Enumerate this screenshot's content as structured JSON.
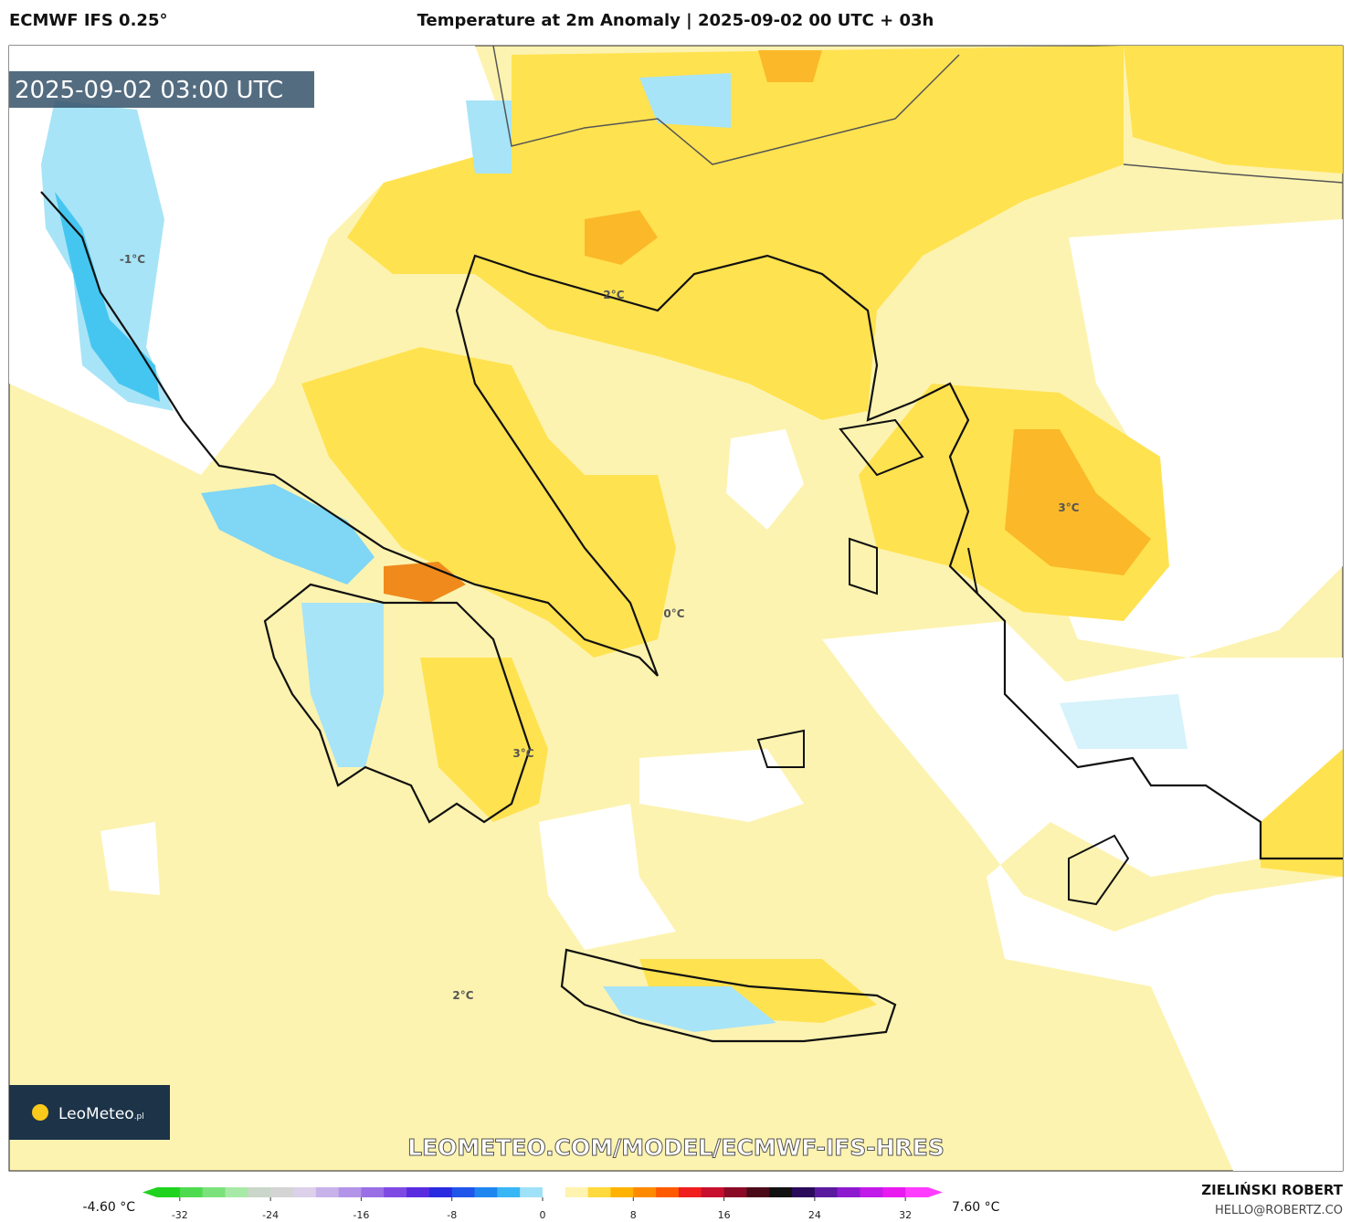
{
  "header": {
    "model": "ECMWF IFS 0.25°",
    "title": "Temperature at 2m Anomaly | 2025-09-02 00 UTC + 03h"
  },
  "map": {
    "timestamp": "2025-09-02 03:00 UTC",
    "logo": "LeoMeteo",
    "logo_suffix": ".pl",
    "url": "LEOMETEO.COM/MODEL/ECMWF-IFS-HRES",
    "contour_labels": [
      "-1°C",
      "2°C",
      "3°C",
      "0°C",
      "3°C",
      "2°C"
    ]
  },
  "colorbar": {
    "min_label": "-4.60 °C",
    "max_label": "7.60 °C",
    "lim": [
      -34,
      34
    ],
    "ticks": [
      -32,
      -24,
      -16,
      -8,
      0,
      8,
      16,
      24,
      32
    ],
    "colors": [
      "#1fd31f",
      "#4fdb4f",
      "#7be27b",
      "#a7e9a7",
      "#c9d6c9",
      "#d4d4d4",
      "#dcd0ea",
      "#c8b2ea",
      "#b394e8",
      "#9a6fe6",
      "#7f49e4",
      "#5a2ce0",
      "#2a2ae0",
      "#1f55e8",
      "#1f86f0",
      "#38b6f5",
      "#9fe2f8",
      "#ffffff",
      "#fff3b0",
      "#ffd93d",
      "#ffb300",
      "#ff8a00",
      "#ff5a00",
      "#f01e1e",
      "#c8102e",
      "#8b0a26",
      "#4a0a18",
      "#111111",
      "#2a0a5a",
      "#5a1aa0",
      "#8e1ad0",
      "#c21ae8",
      "#e81af0",
      "#ff3cff"
    ]
  },
  "footer": {
    "author": "ZIELIŃSKI ROBERT",
    "email": "HELLO@ROBERTZ.CO"
  }
}
